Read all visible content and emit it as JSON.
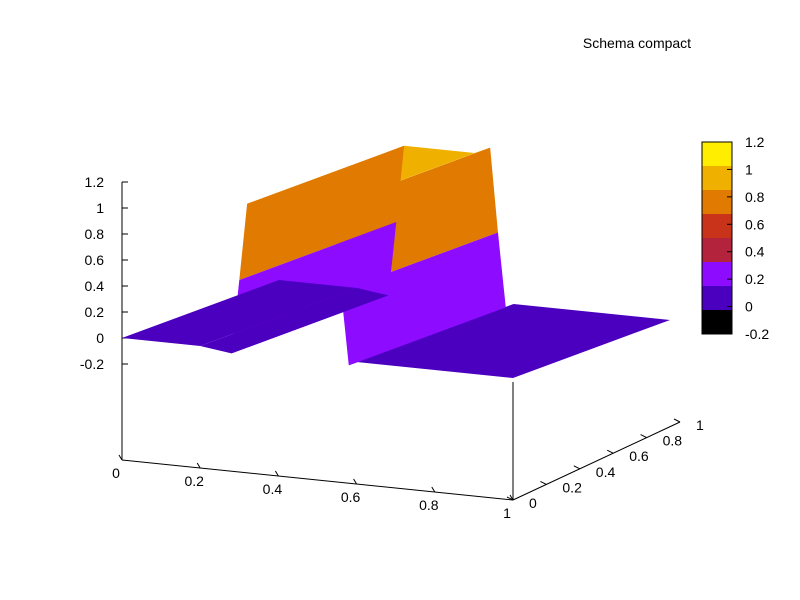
{
  "chart_data": {
    "type": "surface",
    "title": "Schema compact",
    "xlabel": "",
    "ylabel": "",
    "zlabel": "",
    "xlim": [
      0,
      1
    ],
    "ylim": [
      0,
      1
    ],
    "zlim": [
      -0.2,
      1.2
    ],
    "x_ticks": [
      "0",
      "0.2",
      "0.4",
      "0.6",
      "0.8",
      "1"
    ],
    "y_ticks": [
      "0",
      "0.2",
      "0.4",
      "0.6",
      "0.8",
      "1"
    ],
    "z_ticks": [
      "1.2",
      "1",
      "0.8",
      "0.6",
      "0.4",
      "0.2",
      "0",
      "-0.2"
    ],
    "colorbar": {
      "range": [
        -0.2,
        1.2
      ],
      "ticks": [
        "1.2",
        "1",
        "0.8",
        "0.6",
        "0.4",
        "0.2",
        "0",
        "-0.2"
      ],
      "palette": [
        "#000000",
        "#4b00c0",
        "#8d0bff",
        "#b3233c",
        "#c8331a",
        "#e07a00",
        "#f0b000",
        "#ffee00"
      ]
    },
    "surface_profile": {
      "description_axis": "x",
      "x": [
        0,
        0.2,
        0.28,
        0.3,
        0.32,
        0.5,
        0.54,
        0.56,
        0.58,
        0.6,
        1.0
      ],
      "z": [
        0,
        0,
        -0.03,
        0.5,
        1.05,
        1.05,
        1.1,
        0.5,
        -0.03,
        0,
        0
      ]
    },
    "grid": false,
    "legend": "none"
  }
}
